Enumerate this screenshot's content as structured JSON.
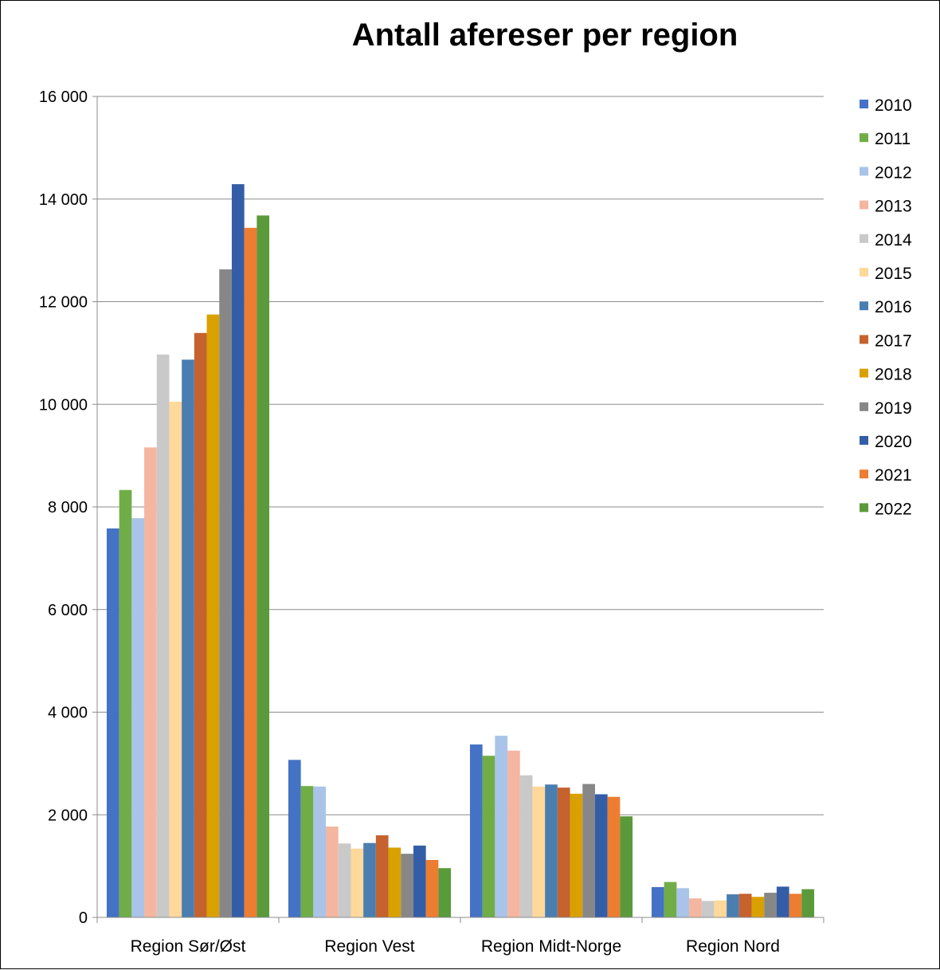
{
  "chart_data": {
    "type": "bar",
    "title": "Antall afereser per region",
    "xlabel": "",
    "ylabel": "",
    "ylim": [
      0,
      16000
    ],
    "ytick_values": [
      0,
      2000,
      4000,
      6000,
      8000,
      10000,
      12000,
      14000,
      16000
    ],
    "ytick_labels": [
      "0",
      "2 000",
      "4 000",
      "6 000",
      "8 000",
      "10 000",
      "12 000",
      "14 000",
      "16 000"
    ],
    "grid": true,
    "legend_position": "right",
    "categories": [
      "Region Sør/Øst",
      "Region Vest",
      "Region Midt-Norge",
      "Region Nord"
    ],
    "series": [
      {
        "name": "2010",
        "color": "#4472C4",
        "values": [
          7580,
          3070,
          3370,
          590
        ]
      },
      {
        "name": "2011",
        "color": "#70AD47",
        "values": [
          8330,
          2560,
          3150,
          690
        ]
      },
      {
        "name": "2012",
        "color": "#A9C4E8",
        "values": [
          7780,
          2550,
          3540,
          570
        ]
      },
      {
        "name": "2013",
        "color": "#F4B6A0",
        "values": [
          9160,
          1770,
          3250,
          370
        ]
      },
      {
        "name": "2014",
        "color": "#C9C9C9",
        "values": [
          10970,
          1440,
          2770,
          320
        ]
      },
      {
        "name": "2015",
        "color": "#FFD89A",
        "values": [
          10050,
          1340,
          2550,
          330
        ]
      },
      {
        "name": "2016",
        "color": "#4A7EB0",
        "values": [
          10870,
          1450,
          2590,
          450
        ]
      },
      {
        "name": "2017",
        "color": "#C5622E",
        "values": [
          11390,
          1600,
          2530,
          460
        ]
      },
      {
        "name": "2018",
        "color": "#D9A100",
        "values": [
          11750,
          1360,
          2410,
          400
        ]
      },
      {
        "name": "2019",
        "color": "#878787",
        "values": [
          12630,
          1240,
          2600,
          480
        ]
      },
      {
        "name": "2020",
        "color": "#345DA7",
        "values": [
          14290,
          1400,
          2400,
          600
        ]
      },
      {
        "name": "2021",
        "color": "#ED7D31",
        "values": [
          13440,
          1120,
          2350,
          460
        ]
      },
      {
        "name": "2022",
        "color": "#5A9A3A",
        "values": [
          13680,
          960,
          1970,
          550
        ]
      }
    ]
  }
}
